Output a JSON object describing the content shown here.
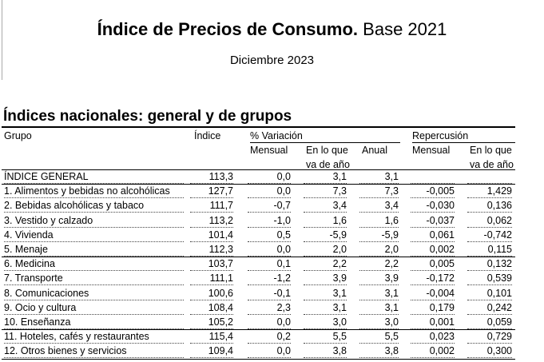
{
  "header": {
    "title_bold": "Índice de Precios de Consumo.",
    "title_rest": "Base 2021",
    "subtitle": "Diciembre 2023"
  },
  "section_title": "Índices nacionales: general y de grupos",
  "table": {
    "group_headers": [
      "Grupo",
      "Índice",
      "% Variación",
      "Repercusión"
    ],
    "sub_headers": [
      [
        "Mensual"
      ],
      [
        "En lo que",
        "va de año"
      ],
      [
        "Anual"
      ],
      [
        "Mensual"
      ],
      [
        "En lo que",
        "va de año"
      ]
    ],
    "rows": [
      [
        "ÍNDICE GENERAL",
        "113,3",
        "0,0",
        "3,1",
        "3,1",
        "",
        ""
      ],
      [
        "1. Alimentos y bebidas no alcohólicas",
        "127,7",
        "0,0",
        "7,3",
        "7,3",
        "-0,005",
        "1,429"
      ],
      [
        "2. Bebidas alcohólicas y tabaco",
        "111,7",
        "-0,7",
        "3,4",
        "3,4",
        "-0,030",
        "0,136"
      ],
      [
        "3. Vestido y calzado",
        "113,2",
        "-1,0",
        "1,6",
        "1,6",
        "-0,037",
        "0,062"
      ],
      [
        "4. Vivienda",
        "101,4",
        "0,5",
        "-5,9",
        "-5,9",
        "0,061",
        "-0,742"
      ],
      [
        "5. Menaje",
        "112,3",
        "0,0",
        "2,0",
        "2,0",
        "0,002",
        "0,115"
      ],
      [
        "6. Medicina",
        "103,7",
        "0,1",
        "2,2",
        "2,2",
        "0,005",
        "0,132"
      ],
      [
        "7. Transporte",
        "111,1",
        "-1,2",
        "3,9",
        "3,9",
        "-0,172",
        "0,539"
      ],
      [
        "8. Comunicaciones",
        "100,6",
        "-0,1",
        "3,1",
        "3,1",
        "-0,004",
        "0,101"
      ],
      [
        "9. Ocio y cultura",
        "108,4",
        "2,3",
        "3,1",
        "3,1",
        "0,179",
        "0,242"
      ],
      [
        "10. Enseñanza",
        "105,2",
        "0,0",
        "3,0",
        "3,0",
        "0,001",
        "0,059"
      ],
      [
        "11. Hoteles, cafés y restaurantes",
        "115,4",
        "0,2",
        "5,5",
        "5,5",
        "0,023",
        "0,729"
      ],
      [
        "12. Otros bienes y servicios",
        "109,4",
        "0,0",
        "3,8",
        "3,8",
        "0,002",
        "0,300"
      ]
    ]
  }
}
